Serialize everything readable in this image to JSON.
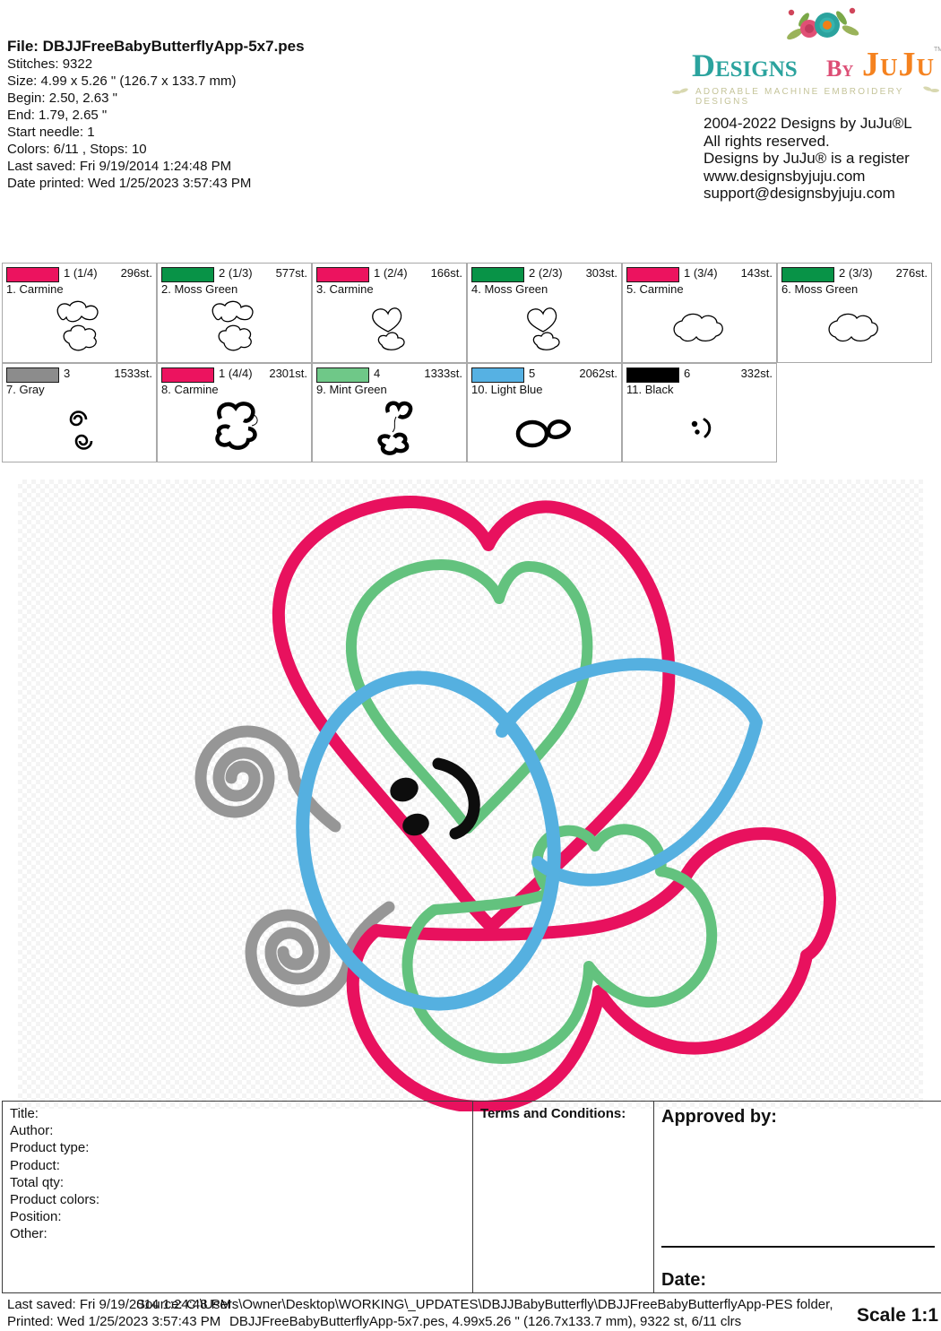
{
  "header": {
    "file_label": "File: DBJJFreeBabyButterflyApp-5x7.pes",
    "info_lines": [
      "Stitches: 9322",
      "Size: 4.99 x 5.26 \" (126.7 x 133.7 mm)",
      "Begin: 2.50, 2.63 \"",
      "End: 1.79, 2.65 \"",
      "Start needle: 1",
      "Colors: 6/11 , Stops: 10",
      "Last saved: Fri 9/19/2014 1:24:48 PM",
      "Date printed: Wed 1/25/2023 3:57:43 PM"
    ]
  },
  "brand": {
    "word_designs": "Designs",
    "word_by": "By",
    "word_juju": "JuJu",
    "tm": "TM",
    "tagline": "ADORABLE MACHINE EMBROIDERY DESIGNS",
    "copyright_lines": [
      "2004-2022 Designs by JuJu®L",
      "All rights reserved.",
      "Designs by JuJu® is a register",
      "www.designsbyjuju.com",
      "support@designsbyjuju.com"
    ],
    "colors": {
      "designs": "#2ba39e",
      "by": "#dd4e75",
      "juju": "#f5821f",
      "tagline": "#c5c49a"
    }
  },
  "color_table": {
    "cells": [
      {
        "row": 1,
        "name_line": "1. Carmine",
        "needle": "1 (1/4)",
        "stitches": "296st.",
        "swatch": "#ec135f",
        "thumb": "blobs"
      },
      {
        "row": 1,
        "name_line": "2. Moss Green",
        "needle": "2 (1/3)",
        "stitches": "577st.",
        "swatch": "#089347",
        "thumb": "blobs"
      },
      {
        "row": 1,
        "name_line": "3. Carmine",
        "needle": "1 (2/4)",
        "stitches": "166st.",
        "swatch": "#ec135f",
        "thumb": "heartblob"
      },
      {
        "row": 1,
        "name_line": "4. Moss Green",
        "needle": "2 (2/3)",
        "stitches": "303st.",
        "swatch": "#089347",
        "thumb": "heartblob"
      },
      {
        "row": 1,
        "name_line": "5. Carmine",
        "needle": "1 (3/4)",
        "stitches": "143st.",
        "swatch": "#ec135f",
        "thumb": "wideblob"
      },
      {
        "row": 1,
        "name_line": "6. Moss Green",
        "needle": "2 (3/3)",
        "stitches": "276st.",
        "swatch": "#089347",
        "thumb": "wideblob"
      },
      {
        "row": 2,
        "name_line": "7. Gray",
        "needle": "3",
        "stitches": "1533st.",
        "swatch": "#8c8c8c",
        "thumb": "spirals"
      },
      {
        "row": 2,
        "name_line": "8. Carmine",
        "needle": "1 (4/4)",
        "stitches": "2301st.",
        "swatch": "#ec135f",
        "thumb": "cloud"
      },
      {
        "row": 2,
        "name_line": "9. Mint Green",
        "needle": "4",
        "stitches": "1333st.",
        "swatch": "#6fc888",
        "thumb": "heartsquiggle"
      },
      {
        "row": 2,
        "name_line": "10. Light Blue",
        "needle": "5",
        "stitches": "2062st.",
        "swatch": "#56b1e3",
        "thumb": "headwing"
      },
      {
        "row": 2,
        "name_line": "11. Black",
        "needle": "6",
        "stitches": "332st.",
        "swatch": "#000000",
        "thumb": "face"
      }
    ]
  },
  "design": {
    "colors": {
      "carmine": "#e8115e",
      "mint": "#63c27e",
      "blue": "#55b0e0",
      "gray": "#969696",
      "black": "#0d0d0d"
    }
  },
  "bottom_table": {
    "left_labels": [
      "Title:",
      "Author:",
      "Product type:",
      "Product:",
      "Total qty:",
      "Product colors:",
      "Position:",
      "Other:"
    ],
    "terms_label": "Terms and Conditions:",
    "approved_label": "Approved by:",
    "date_label": "Date:"
  },
  "footer": {
    "last_saved": "Last saved: Fri 9/19/2014 1:24:48 PM",
    "printed": "Printed: Wed 1/25/2023 3:57:43 PM",
    "source_line": "Source: C:\\Users\\Owner\\Desktop\\WORKING\\_UPDATES\\DBJJBabyButterfly\\DBJJFreeBabyButterflyApp-PES folder,",
    "file_line": "DBJJFreeBabyButterflyApp-5x7.pes, 4.99x5.26 \" (126.7x133.7 mm), 9322 st, 6/11 clrs",
    "scale_label": "Scale 1:1"
  }
}
